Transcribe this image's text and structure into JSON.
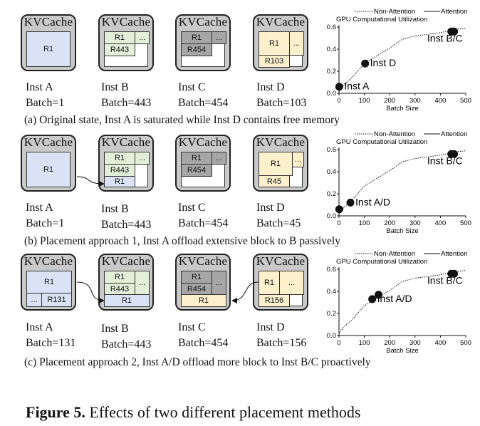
{
  "colors": {
    "blue": "#d9e3f5",
    "green": "#e2efd9",
    "gray": "#a6a6a6",
    "yellow": "#fdf0cc",
    "card": "#c9c9c9"
  },
  "rows": [
    {
      "insts": [
        {
          "title": "KVCache",
          "name": "Inst A",
          "batch": "Batch=1",
          "blocks": [
            "R1"
          ]
        },
        {
          "title": "KVCache",
          "name": "Inst B",
          "batch": "Batch=443",
          "blocks": [
            "R1",
            "...",
            "R443"
          ]
        },
        {
          "title": "KVCache",
          "name": "Inst C",
          "batch": "Batch=454",
          "blocks": [
            "R1",
            "...",
            "R454"
          ]
        },
        {
          "title": "KVCache",
          "name": "Inst D",
          "batch": "Batch=103",
          "blocks": [
            "R1",
            "...",
            "R103"
          ]
        }
      ],
      "caption": "(a) Original state, Inst A is saturated while Inst D contains free memory"
    },
    {
      "insts": [
        {
          "title": "KVCache",
          "name": "Inst A",
          "batch": "Batch=1",
          "blocks": [
            "R1"
          ]
        },
        {
          "title": "KVCache",
          "name": "Inst B",
          "batch": "Batch=443",
          "blocks": [
            "R1",
            "...",
            "R443",
            "R1"
          ]
        },
        {
          "title": "KVCache",
          "name": "Inst C",
          "batch": "Batch=454",
          "blocks": [
            "R1",
            "...",
            "R454"
          ]
        },
        {
          "title": "KVCache",
          "name": "Inst D",
          "batch": "Batch=45",
          "blocks": [
            "R1",
            "...",
            "R45"
          ]
        }
      ],
      "caption": "(b) Placement approach 1, Inst A offload extensive block to B passively"
    },
    {
      "insts": [
        {
          "title": "KVCache",
          "name": "Inst A",
          "batch": "Batch=131",
          "blocks": [
            "R1",
            "...",
            "R131"
          ]
        },
        {
          "title": "KVCache",
          "name": "Inst B",
          "batch": "Batch=443",
          "blocks": [
            "R1",
            "...",
            "R443",
            "R1"
          ]
        },
        {
          "title": "KVCache",
          "name": "Inst C",
          "batch": "Batch=454",
          "blocks": [
            "R1",
            "...",
            "R454",
            "R1"
          ]
        },
        {
          "title": "KVCache",
          "name": "Inst D",
          "batch": "Batch=156",
          "blocks": [
            "R1",
            "...",
            "R156"
          ]
        }
      ],
      "caption": "(c) Placement approach 2, Inst A/D offload more block to Inst B/C proactively"
    }
  ],
  "figure_caption": {
    "label": "Figure 5.",
    "text": "Effects of two different placement methods"
  },
  "chart_data": [
    {
      "type": "line",
      "title": "GPU Computational Utilization",
      "xlabel": "Batch Size",
      "ylabel": "",
      "xlim": [
        0,
        500
      ],
      "ylim": [
        0,
        0.62
      ],
      "xticks": [
        0,
        100,
        200,
        300,
        400,
        500
      ],
      "yticks": [
        0.0,
        0.2,
        0.4,
        0.6
      ],
      "series": [
        {
          "name": "Non-Attention",
          "style": "dotted",
          "x": [
            1,
            20,
            50,
            100,
            150,
            200,
            250,
            300,
            400,
            460,
            500
          ],
          "y": [
            0.02,
            0.08,
            0.14,
            0.27,
            0.34,
            0.41,
            0.49,
            0.52,
            0.55,
            0.58,
            0.59
          ]
        },
        {
          "name": "Attention",
          "style": "solid",
          "x": [],
          "y": []
        }
      ],
      "points": [
        {
          "label": "Inst A",
          "x": 1,
          "y": 0.06
        },
        {
          "label": "Inst D",
          "x": 103,
          "y": 0.27
        },
        {
          "label": "Inst B/C",
          "x": 443,
          "y": 0.56
        },
        {
          "label": "",
          "x": 454,
          "y": 0.56
        }
      ],
      "annotations": [
        "Inst A",
        "Inst D",
        "Inst B/C"
      ]
    },
    {
      "type": "line",
      "title": "GPU Computational Utilization",
      "xlabel": "Batch Size",
      "ylabel": "",
      "xlim": [
        0,
        500
      ],
      "ylim": [
        0,
        0.62
      ],
      "xticks": [
        0,
        100,
        200,
        300,
        400,
        500
      ],
      "yticks": [
        0.0,
        0.2,
        0.4,
        0.6
      ],
      "series": [
        {
          "name": "Non-Attention",
          "style": "dotted",
          "x": [
            1,
            20,
            50,
            100,
            150,
            200,
            250,
            300,
            400,
            460,
            500
          ],
          "y": [
            0.02,
            0.08,
            0.14,
            0.27,
            0.34,
            0.41,
            0.49,
            0.52,
            0.55,
            0.58,
            0.59
          ]
        },
        {
          "name": "Attention",
          "style": "solid",
          "x": [],
          "y": []
        }
      ],
      "points": [
        {
          "label": "",
          "x": 1,
          "y": 0.06
        },
        {
          "label": "Inst A/D",
          "x": 45,
          "y": 0.12
        },
        {
          "label": "Inst B/C",
          "x": 443,
          "y": 0.56
        },
        {
          "label": "",
          "x": 454,
          "y": 0.56
        }
      ],
      "annotations": [
        "Inst A/D",
        "Inst B/C"
      ]
    },
    {
      "type": "line",
      "title": "GPU Computational Utilization",
      "xlabel": "Batch Size",
      "ylabel": "",
      "xlim": [
        0,
        500
      ],
      "ylim": [
        0,
        0.62
      ],
      "xticks": [
        0,
        100,
        200,
        300,
        400,
        500
      ],
      "yticks": [
        0.0,
        0.2,
        0.4,
        0.6
      ],
      "series": [
        {
          "name": "Non-Attention",
          "style": "dotted",
          "x": [
            1,
            20,
            50,
            100,
            150,
            200,
            250,
            300,
            400,
            460,
            500
          ],
          "y": [
            0.02,
            0.08,
            0.14,
            0.27,
            0.34,
            0.41,
            0.49,
            0.52,
            0.55,
            0.58,
            0.59
          ]
        },
        {
          "name": "Attention",
          "style": "solid",
          "x": [],
          "y": []
        }
      ],
      "points": [
        {
          "label": "Inst A/D",
          "x": 131,
          "y": 0.33
        },
        {
          "label": "",
          "x": 156,
          "y": 0.37
        },
        {
          "label": "Inst B/C",
          "x": 443,
          "y": 0.56
        },
        {
          "label": "",
          "x": 454,
          "y": 0.56
        }
      ],
      "annotations": [
        "Inst A/D",
        "Inst B/C"
      ]
    }
  ]
}
